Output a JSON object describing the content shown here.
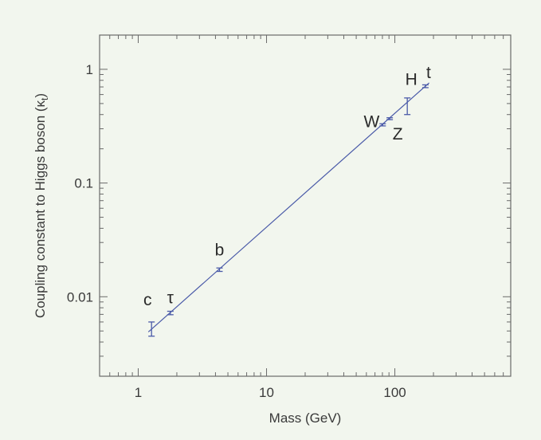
{
  "chart_data": {
    "type": "scatter",
    "xlabel": "Mass (GeV)",
    "ylabel": "Coupling constant to Higgs boson (κ",
    "ylabel_subscript": "t",
    "ylabel_suffix": ")",
    "x_scale": "log",
    "y_scale": "log",
    "xlim": [
      0.5,
      800
    ],
    "ylim": [
      0.002,
      2
    ],
    "x_ticks": [
      1,
      10,
      100
    ],
    "x_tick_labels": [
      "1",
      "10",
      "100"
    ],
    "y_ticks": [
      0.01,
      0.1,
      1
    ],
    "y_tick_labels": [
      "0.01",
      "0.1",
      "1"
    ],
    "grid": false,
    "line_color": "#4a5aa8",
    "fit_line": {
      "x": [
        1.2,
        185
      ],
      "y": [
        0.0049,
        0.76
      ]
    },
    "points": [
      {
        "label": "c",
        "x": 1.27,
        "y": 0.0052,
        "err_low": 0.0045,
        "err_high": 0.006
      },
      {
        "label": "τ",
        "x": 1.78,
        "y": 0.0072,
        "err_low": 0.00695,
        "err_high": 0.00745
      },
      {
        "label": "b",
        "x": 4.3,
        "y": 0.0173,
        "err_low": 0.0167,
        "err_high": 0.0179
      },
      {
        "label": "W",
        "x": 80.4,
        "y": 0.325,
        "err_low": 0.318,
        "err_high": 0.332
      },
      {
        "label": "Z",
        "x": 91.2,
        "y": 0.368,
        "err_low": 0.361,
        "err_high": 0.375
      },
      {
        "label": "H",
        "x": 125,
        "y": 0.48,
        "err_low": 0.4,
        "err_high": 0.56
      },
      {
        "label": "t",
        "x": 173,
        "y": 0.71,
        "err_low": 0.69,
        "err_high": 0.73
      }
    ]
  }
}
